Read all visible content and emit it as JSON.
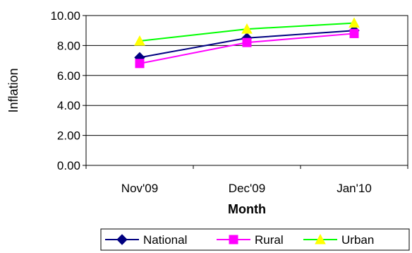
{
  "chart_data": {
    "type": "line",
    "categories": [
      "Nov'09",
      "Dec'09",
      "Jan'10"
    ],
    "series": [
      {
        "name": "National",
        "values": [
          7.2,
          8.5,
          9.0
        ],
        "color": "#000080",
        "marker": "diamond"
      },
      {
        "name": "Rural",
        "values": [
          6.8,
          8.2,
          8.8
        ],
        "color": "#FF00FF",
        "marker": "square"
      },
      {
        "name": "Urban",
        "values": [
          8.3,
          9.1,
          9.5
        ],
        "color": "#00FF00",
        "marker": "triangle",
        "marker_color": "#FFFF00"
      }
    ],
    "xlabel": "Month",
    "ylabel": "Inflation",
    "ylim": [
      0,
      10
    ],
    "yticks": [
      "0.00",
      "2.00",
      "4.00",
      "6.00",
      "8.00",
      "10.00"
    ],
    "grid": true,
    "legend_position": "bottom-right"
  }
}
